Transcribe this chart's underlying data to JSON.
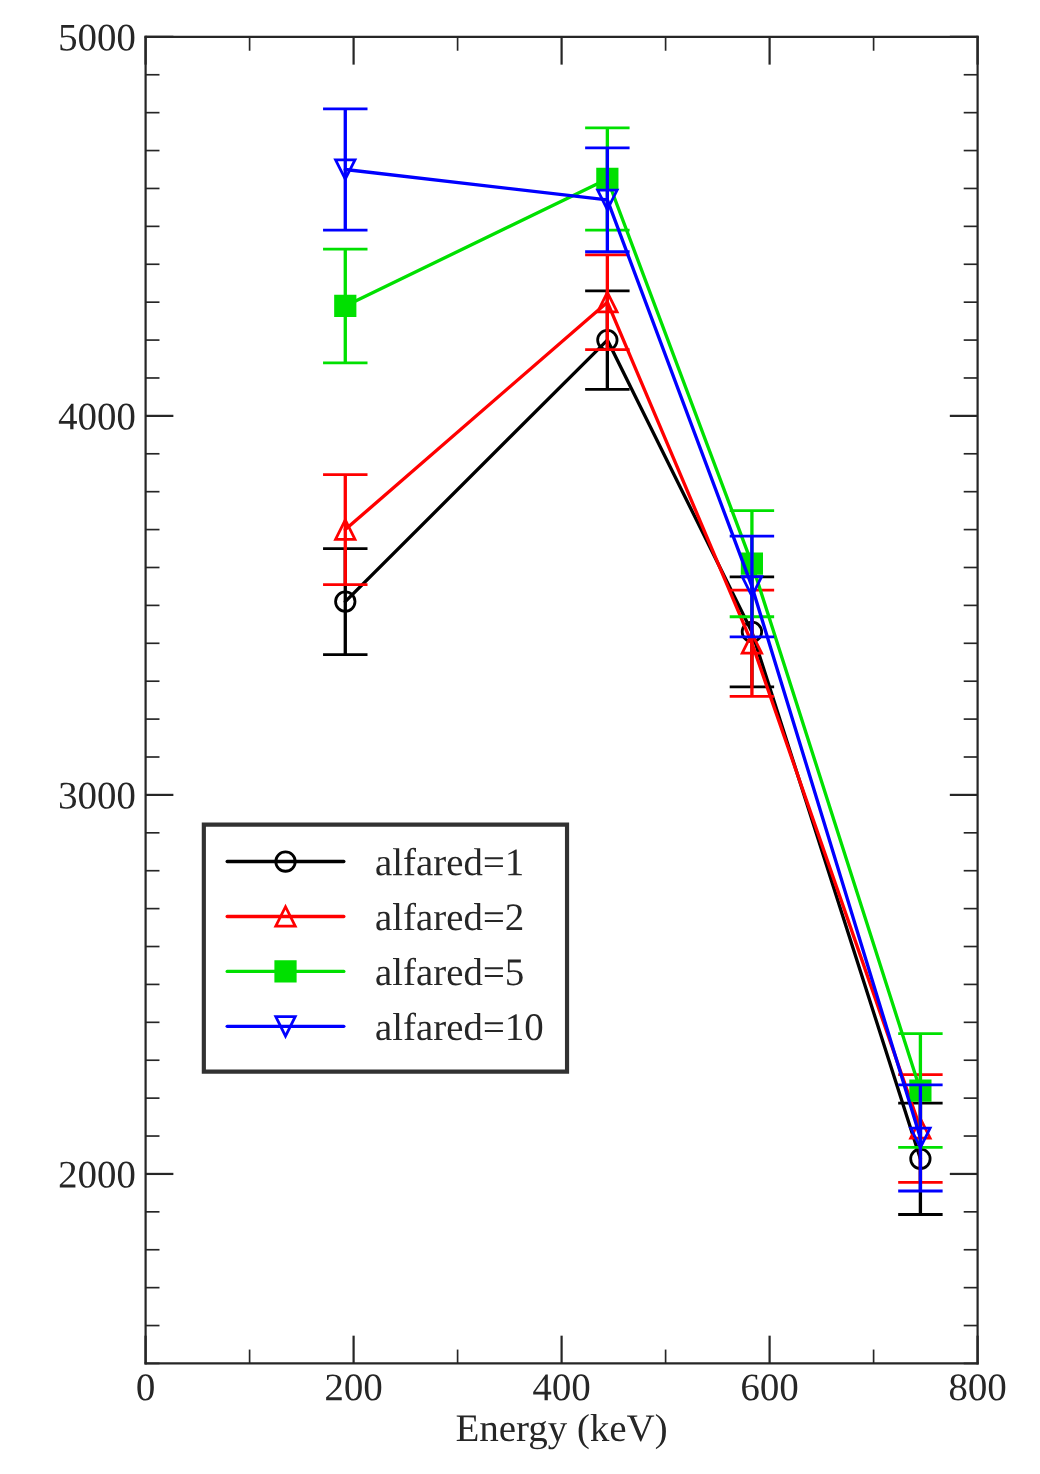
{
  "chart_data": {
    "type": "line",
    "xlabel": "Energy (keV)",
    "x": [
      192,
      444,
      583,
      745
    ],
    "series": [
      {
        "name": "alfared=1",
        "color": "#000000",
        "marker": "circle",
        "values": [
          3510,
          4200,
          3430,
          2040
        ],
        "errors": [
          140,
          130,
          145,
          147
        ]
      },
      {
        "name": "alfared=2",
        "color": "#ff0000",
        "marker": "triangle",
        "values": [
          3700,
          4300,
          3400,
          2120
        ],
        "errors": [
          145,
          125,
          140,
          142
        ]
      },
      {
        "name": "alfared=5",
        "color": "#00e000",
        "marker": "square",
        "values": [
          4290,
          4625,
          3610,
          2220
        ],
        "errors": [
          150,
          135,
          140,
          150
        ]
      },
      {
        "name": "alfared=10",
        "color": "#0000ff",
        "marker": "triangle_down",
        "values": [
          4650,
          4570,
          3550,
          2095
        ],
        "errors": [
          160,
          137,
          133,
          140
        ]
      }
    ],
    "xlim": [
      0,
      800
    ],
    "xticks": [
      0,
      200,
      400,
      600,
      800
    ],
    "ylim": [
      1500,
      5000
    ],
    "yticks": [
      2000,
      3000,
      4000,
      5000
    ],
    "grid": false,
    "legend": "bottom left",
    "line_style": "solid"
  }
}
